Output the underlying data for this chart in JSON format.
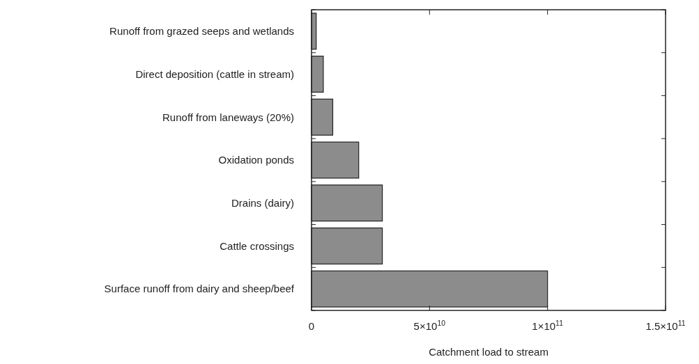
{
  "chart_data": {
    "type": "bar",
    "orientation": "horizontal",
    "xlabel": "Catchment load to stream",
    "categories": [
      "Runoff from grazed seeps and wetlands",
      "Direct deposition (cattle in stream)",
      "Runoff from laneways (20%)",
      "Oxidation ponds",
      "Drains (dairy)",
      "Cattle crossings",
      "Surface runoff from dairy and sheep/beef"
    ],
    "values": [
      2000000000.0,
      5000000000.0,
      9000000000.0,
      20000000000.0,
      30000000000.0,
      30000000000.0,
      100000000000.0
    ],
    "color": "#8c8c8c",
    "xlim": [
      0,
      150000000000.0
    ],
    "xticks": [
      0,
      {
        "value": 50000000000.0,
        "label": "5×10$^{10}$"
      },
      {
        "value": 100000000000.0,
        "label": "1×10$^{11}$"
      },
      {
        "value": 150000000000.0,
        "label": "1.5×10$^{11}$"
      }
    ],
    "grid": false
  }
}
